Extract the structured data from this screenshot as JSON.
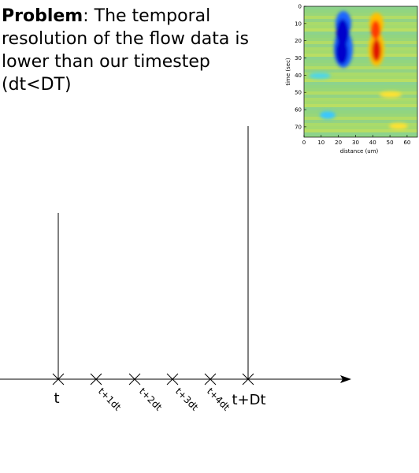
{
  "slide": {
    "problem_label": "Problem",
    "problem_body": ": The temporal resolution of the flow data is lower than our timestep (dt<DT)"
  },
  "timeline": {
    "ticks": [
      "t",
      "t+1dt",
      "t+2dt",
      "t+3dt",
      "t+4dt",
      "t+Dt"
    ]
  },
  "heatmap": {
    "xlabel": "distance (um)",
    "ylabel": "time (sec)",
    "x_ticks": [
      "0",
      "10",
      "20",
      "30",
      "40",
      "50",
      "60"
    ],
    "y_ticks": [
      "0",
      "10",
      "20",
      "30",
      "40",
      "50",
      "60",
      "70"
    ],
    "colormap": "jet"
  }
}
